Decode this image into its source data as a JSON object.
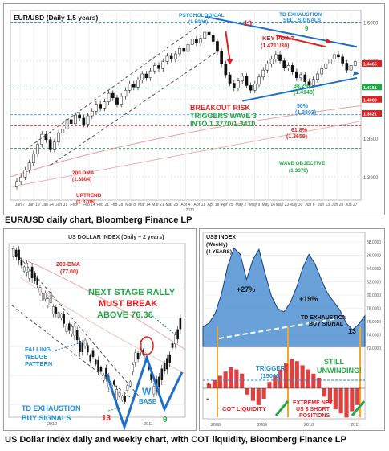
{
  "captions": {
    "top": "EUR/USD daily chart, Bloomberg Finance LP",
    "bottom": "US Dollar Index daily and weekly chart, with COT liquidity, Bloomberg Finance LP"
  },
  "chart_data": [
    {
      "type": "candlestick",
      "title": "EUR/USD (Daily 1.5 years)",
      "xticks": [
        "Jan 7",
        "Jan 19",
        "Jan 24",
        "Jan 31",
        "Feb 7",
        "Feb 14",
        "Feb 21",
        "Feb 28",
        "Mar 8",
        "Mar 14",
        "Mar 21",
        "Mar 28",
        "Apr 4",
        "Apr 11",
        "Apr 18",
        "Apr 25",
        "May 2",
        "May 9",
        "May 16",
        "May 23",
        "May 30",
        "Jun 6",
        "Jun 13",
        "Jun 20",
        "Jun 27"
      ],
      "year_label": "2011",
      "yticks": [
        "1.3000",
        "1.3500",
        "1.4000",
        "1.4500",
        "1.5000"
      ],
      "ylim": [
        1.27,
        1.515
      ],
      "closes": [
        1.294,
        1.3,
        1.309,
        1.318,
        1.33,
        1.342,
        1.355,
        1.348,
        1.336,
        1.345,
        1.357,
        1.362,
        1.374,
        1.369,
        1.38,
        1.376,
        1.368,
        1.379,
        1.385,
        1.394,
        1.389,
        1.397,
        1.408,
        1.402,
        1.394,
        1.404,
        1.412,
        1.42,
        1.416,
        1.425,
        1.433,
        1.428,
        1.437,
        1.444,
        1.44,
        1.449,
        1.456,
        1.452,
        1.459,
        1.466,
        1.462,
        1.471,
        1.478,
        1.473,
        1.479,
        1.487,
        1.483,
        1.475,
        1.462,
        1.446,
        1.432,
        1.421,
        1.415,
        1.424,
        1.43,
        1.418,
        1.412,
        1.42,
        1.429,
        1.438,
        1.446,
        1.452,
        1.458,
        1.45,
        1.441,
        1.444,
        1.436,
        1.428,
        1.432,
        1.423,
        1.418,
        1.426,
        1.433,
        1.44,
        1.446,
        1.452,
        1.458,
        1.455,
        1.447,
        1.438,
        1.444,
        1.449
      ],
      "annotations": [
        {
          "text": "PSYCHOLOGICAL",
          "color": "#1f8fd8"
        },
        {
          "text": "(1.5000)",
          "color": "#1f8fd8"
        },
        {
          "text": "TD EXHAUSTION",
          "color": "#1f8fd8"
        },
        {
          "text": "SELL SIGNALS",
          "color": "#1f8fd8"
        },
        {
          "text": "13",
          "color": "#e02020"
        },
        {
          "text": "9",
          "color": "#22a846"
        },
        {
          "text": "KEY POINT",
          "color": "#e02020"
        },
        {
          "text": "(1.4711/30)",
          "color": "#e02020"
        },
        {
          "text": "38.2%",
          "color": "#22a846"
        },
        {
          "text": "(1.4148)",
          "color": "#22a846"
        },
        {
          "text": "BREAKOUT RISK",
          "color": "#e02020"
        },
        {
          "text": "TRIGGERS WAVE 3",
          "color": "#22a846"
        },
        {
          "text": "INTO 1.3770/1.3410",
          "color": "#22a846"
        },
        {
          "text": "50%",
          "color": "#1f8fd8"
        },
        {
          "text": "(1.3803)",
          "color": "#1f8fd8"
        },
        {
          "text": "61.8%",
          "color": "#e02020"
        },
        {
          "text": "(1.3659)",
          "color": "#e02020"
        },
        {
          "text": "WAVE OBJECTIVE",
          "color": "#22a846"
        },
        {
          "text": "(1.3370)",
          "color": "#22a846"
        },
        {
          "text": "200 DMA",
          "color": "#e02020"
        },
        {
          "text": "(1.3804)",
          "color": "#e02020"
        },
        {
          "text": "UPTREND",
          "color": "#e02020"
        },
        {
          "text": "(1.3706)",
          "color": "#e02020"
        }
      ],
      "price_tags": [
        "1.4465",
        "1.4161",
        "1.4000",
        "1.3821"
      ]
    },
    {
      "type": "candlestick",
      "title": "US DOLLAR INDEX (Daily – 2 years)",
      "xticks": [
        "2010",
        "2011"
      ],
      "annotations": [
        {
          "text": "200-DMA",
          "color": "#e02020"
        },
        {
          "text": "(77.00)",
          "color": "#e02020"
        },
        {
          "text": "NEXT STAGE RALLY",
          "color": "#22a846"
        },
        {
          "text": "MUST BREAK",
          "color": "#e02020"
        },
        {
          "text": "ABOVE 76.36",
          "color": "#22a846"
        },
        {
          "text": "FALLING",
          "color": "#1f8fd8"
        },
        {
          "text": "WEDGE",
          "color": "#1f8fd8"
        },
        {
          "text": "PATTERN",
          "color": "#1f8fd8"
        },
        {
          "text": "W",
          "color": "#1f8fd8"
        },
        {
          "text": "BASE",
          "color": "#1f8fd8"
        },
        {
          "text": "TD EXHAUSTION",
          "color": "#1f8fd8"
        },
        {
          "text": "BUY SIGNALS",
          "color": "#1f8fd8"
        },
        {
          "text": "13",
          "color": "#e02020"
        },
        {
          "text": "9",
          "color": "#22a846"
        }
      ]
    },
    {
      "type": "area",
      "title": "US$ INDEX",
      "subtitle": "(Weekly)",
      "subtitle2": "(4 YEARS)",
      "xticks": [
        "2008",
        "2009",
        "2010",
        "2011"
      ],
      "yticks": [
        "88.0000",
        "86.0000",
        "84.0000",
        "82.0000",
        "80.0000",
        "78.0000",
        "76.0000",
        "74.0000",
        "72.0000"
      ],
      "values": [
        73.5,
        74.2,
        76.0,
        79.5,
        84.5,
        87.6,
        86.5,
        82.0,
        85.5,
        87.4,
        83.0,
        79.0,
        76.8,
        76.2,
        77.8,
        80.5,
        84.0,
        86.5,
        84.8,
        82.0,
        79.5,
        78.0,
        76.5,
        74.2,
        73.0,
        74.0,
        75.5
      ],
      "annotations": [
        {
          "text": "+27%",
          "color": "#111111"
        },
        {
          "text": "+19%",
          "color": "#111111"
        },
        {
          "text": "TD EXHAUSTION",
          "color": "#111111"
        },
        {
          "text": "BUY SIGNAL",
          "color": "#111111"
        },
        {
          "text": "13",
          "color": "#111111"
        }
      ]
    },
    {
      "type": "bar",
      "title": "COT LIQUIDITY",
      "values": [
        2,
        4,
        6,
        8,
        10,
        9,
        7,
        -3,
        -6,
        -8,
        -5,
        3,
        6,
        9,
        12,
        14,
        13,
        11,
        9,
        7,
        5,
        -4,
        -7,
        -10,
        -12,
        -14,
        -11,
        -8
      ],
      "annotations": [
        {
          "text": "TRIGGER",
          "color": "#1f8fd8"
        },
        {
          "text": "(15000)",
          "color": "#1f8fd8"
        },
        {
          "text": "STILL",
          "color": "#22a846"
        },
        {
          "text": "UNWINDING!",
          "color": "#22a846"
        },
        {
          "text": "EXTREME NET",
          "color": "#e02020"
        },
        {
          "text": "US $ SHORT",
          "color": "#e02020"
        },
        {
          "text": "POSITIONS",
          "color": "#e02020"
        },
        {
          "text": "COT LIQUIDITY",
          "color": "#e02020"
        },
        {
          "text": "+",
          "color": "#e02020"
        },
        {
          "text": "-",
          "color": "#e02020"
        }
      ]
    }
  ],
  "colors": {
    "red": "#e02020",
    "green": "#22a846",
    "blue": "#1f8fd8",
    "area": "#4f8fd0"
  }
}
